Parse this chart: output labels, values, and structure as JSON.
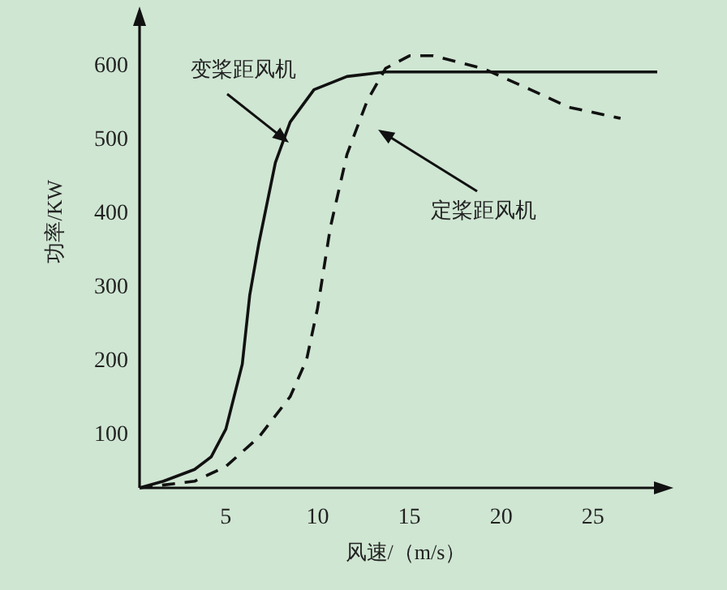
{
  "chart_data": {
    "type": "line",
    "xlabel": "风速/（m/s）",
    "ylabel": "功率/KW",
    "xlim": [
      0.3,
      28.5
    ],
    "ylim": [
      28,
      660
    ],
    "xticks": [
      5,
      10,
      15,
      20,
      25
    ],
    "yticks": [
      100,
      200,
      300,
      400,
      500,
      600
    ],
    "series": [
      {
        "color": "#111111",
        "line_style": "solid",
        "x": [
          0.3,
          1.6,
          3.3,
          4.2,
          5,
          5.9,
          6.3,
          6.8,
          7.7,
          8.5,
          9.8,
          11.6,
          13.7,
          19,
          28.5
        ],
        "values": [
          28,
          37,
          53,
          70,
          108,
          196,
          290,
          360,
          470,
          525,
          569,
          587,
          593,
          593,
          593
        ]
      },
      {
        "color": "#111111",
        "line_style": "dashed",
        "x": [
          0.3,
          3.3,
          5,
          6.8,
          8.5,
          9.4,
          10,
          10.7,
          11.6,
          12.7,
          13.7,
          15,
          16.3,
          19,
          21.6,
          23.7,
          26.5
        ],
        "values": [
          28,
          37,
          57,
          97,
          152,
          202,
          272,
          382,
          481,
          554,
          598,
          615,
          615,
          598,
          569,
          545,
          530
        ]
      }
    ],
    "annotations": [
      "变桨距风机",
      "定桨距风机"
    ]
  }
}
